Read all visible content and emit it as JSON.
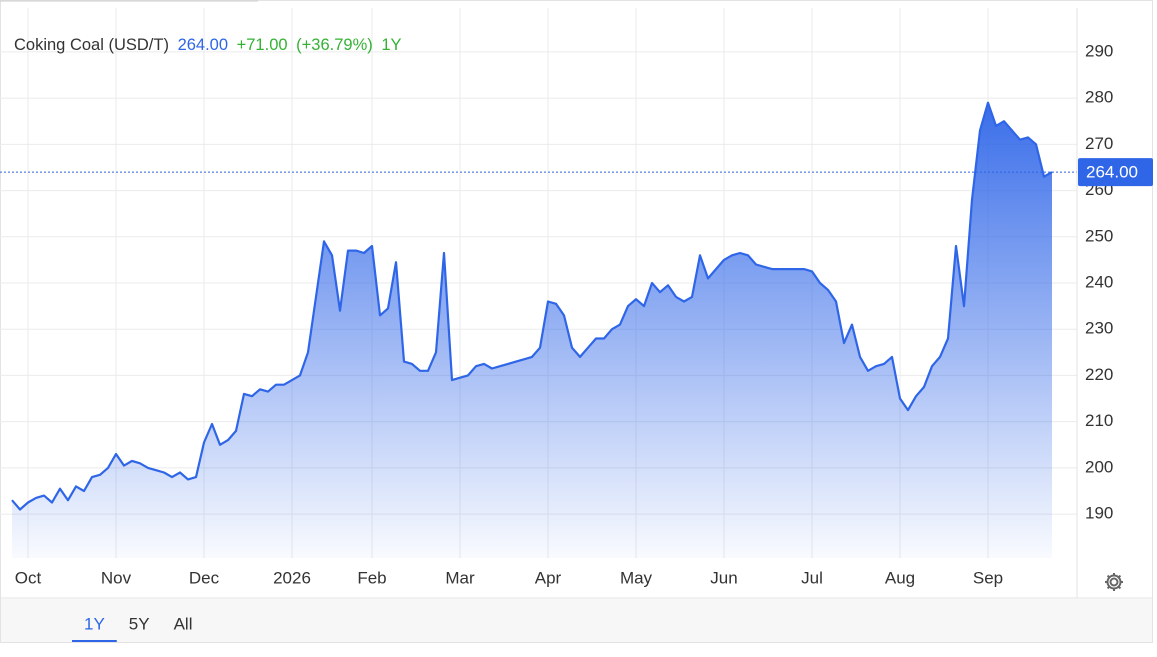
{
  "chart_data": {
    "type": "area",
    "title": "Coking Coal (USD/T)",
    "price": {
      "value": 264,
      "label": "264.00"
    },
    "change": {
      "value": 71,
      "label": "+71.00"
    },
    "change_pct": {
      "value": 36.79,
      "label": "(+36.79%)"
    },
    "period": "1Y",
    "range_buttons": [
      "1Y",
      "5Y",
      "All"
    ],
    "grid": true,
    "ylim": [
      180.5,
      299.5
    ],
    "yticks": [
      190,
      200,
      210,
      220,
      230,
      240,
      250,
      260,
      270,
      280,
      290
    ],
    "categories": [
      null,
      null,
      "Oct",
      null,
      null,
      null,
      null,
      null,
      null,
      null,
      null,
      null,
      null,
      "Nov",
      null,
      null,
      null,
      null,
      null,
      null,
      null,
      null,
      null,
      null,
      "Dec",
      null,
      null,
      null,
      null,
      null,
      null,
      null,
      null,
      null,
      null,
      "2026",
      null,
      null,
      null,
      null,
      null,
      null,
      null,
      null,
      null,
      "Feb",
      null,
      null,
      null,
      null,
      null,
      null,
      null,
      null,
      null,
      null,
      "Mar",
      null,
      null,
      null,
      null,
      null,
      null,
      null,
      null,
      null,
      null,
      "Apr",
      null,
      null,
      null,
      null,
      null,
      null,
      null,
      null,
      null,
      null,
      "May",
      null,
      null,
      null,
      null,
      null,
      null,
      null,
      null,
      null,
      null,
      "Jun",
      null,
      null,
      null,
      null,
      null,
      null,
      null,
      null,
      null,
      null,
      "Jul",
      null,
      null,
      null,
      null,
      null,
      null,
      null,
      null,
      null,
      null,
      "Aug",
      null,
      null,
      null,
      null,
      null,
      null,
      null,
      null,
      null,
      null,
      "Sep",
      null,
      null,
      null,
      null,
      null,
      null,
      null,
      null
    ],
    "series": [
      {
        "name": "Coking Coal",
        "color": "#2f66e8",
        "values": [
          193,
          191,
          192.5,
          193.5,
          194,
          192.5,
          195.5,
          193,
          196,
          195,
          198,
          198.5,
          200,
          203,
          200.5,
          201.5,
          201,
          200,
          199.5,
          199,
          198,
          199,
          197.5,
          198,
          205.5,
          209.5,
          205,
          206,
          208,
          216,
          215.5,
          217,
          216.5,
          218,
          218,
          219,
          220,
          225,
          237,
          249,
          246,
          234,
          247,
          247,
          246.5,
          248,
          233,
          234.5,
          244.5,
          223,
          222.5,
          221,
          221,
          225,
          246.5,
          219,
          219.5,
          220,
          222,
          222.5,
          221.5,
          222,
          222.5,
          223,
          223.5,
          224,
          226,
          236,
          235.5,
          233,
          226,
          224,
          226,
          228,
          228,
          230,
          231,
          235,
          236.5,
          235,
          240,
          238,
          239.5,
          237,
          236,
          237,
          246,
          241,
          243,
          245,
          246,
          246.5,
          246,
          244,
          243.5,
          243,
          243,
          243,
          243,
          243,
          242.5,
          240,
          238.5,
          236,
          227,
          231,
          224,
          221,
          222,
          222.5,
          224,
          215,
          212.5,
          215.5,
          217.5,
          222,
          224,
          228,
          248,
          235,
          258,
          273,
          279,
          274,
          275,
          273,
          271,
          271.5,
          270,
          263,
          264
        ]
      }
    ]
  }
}
